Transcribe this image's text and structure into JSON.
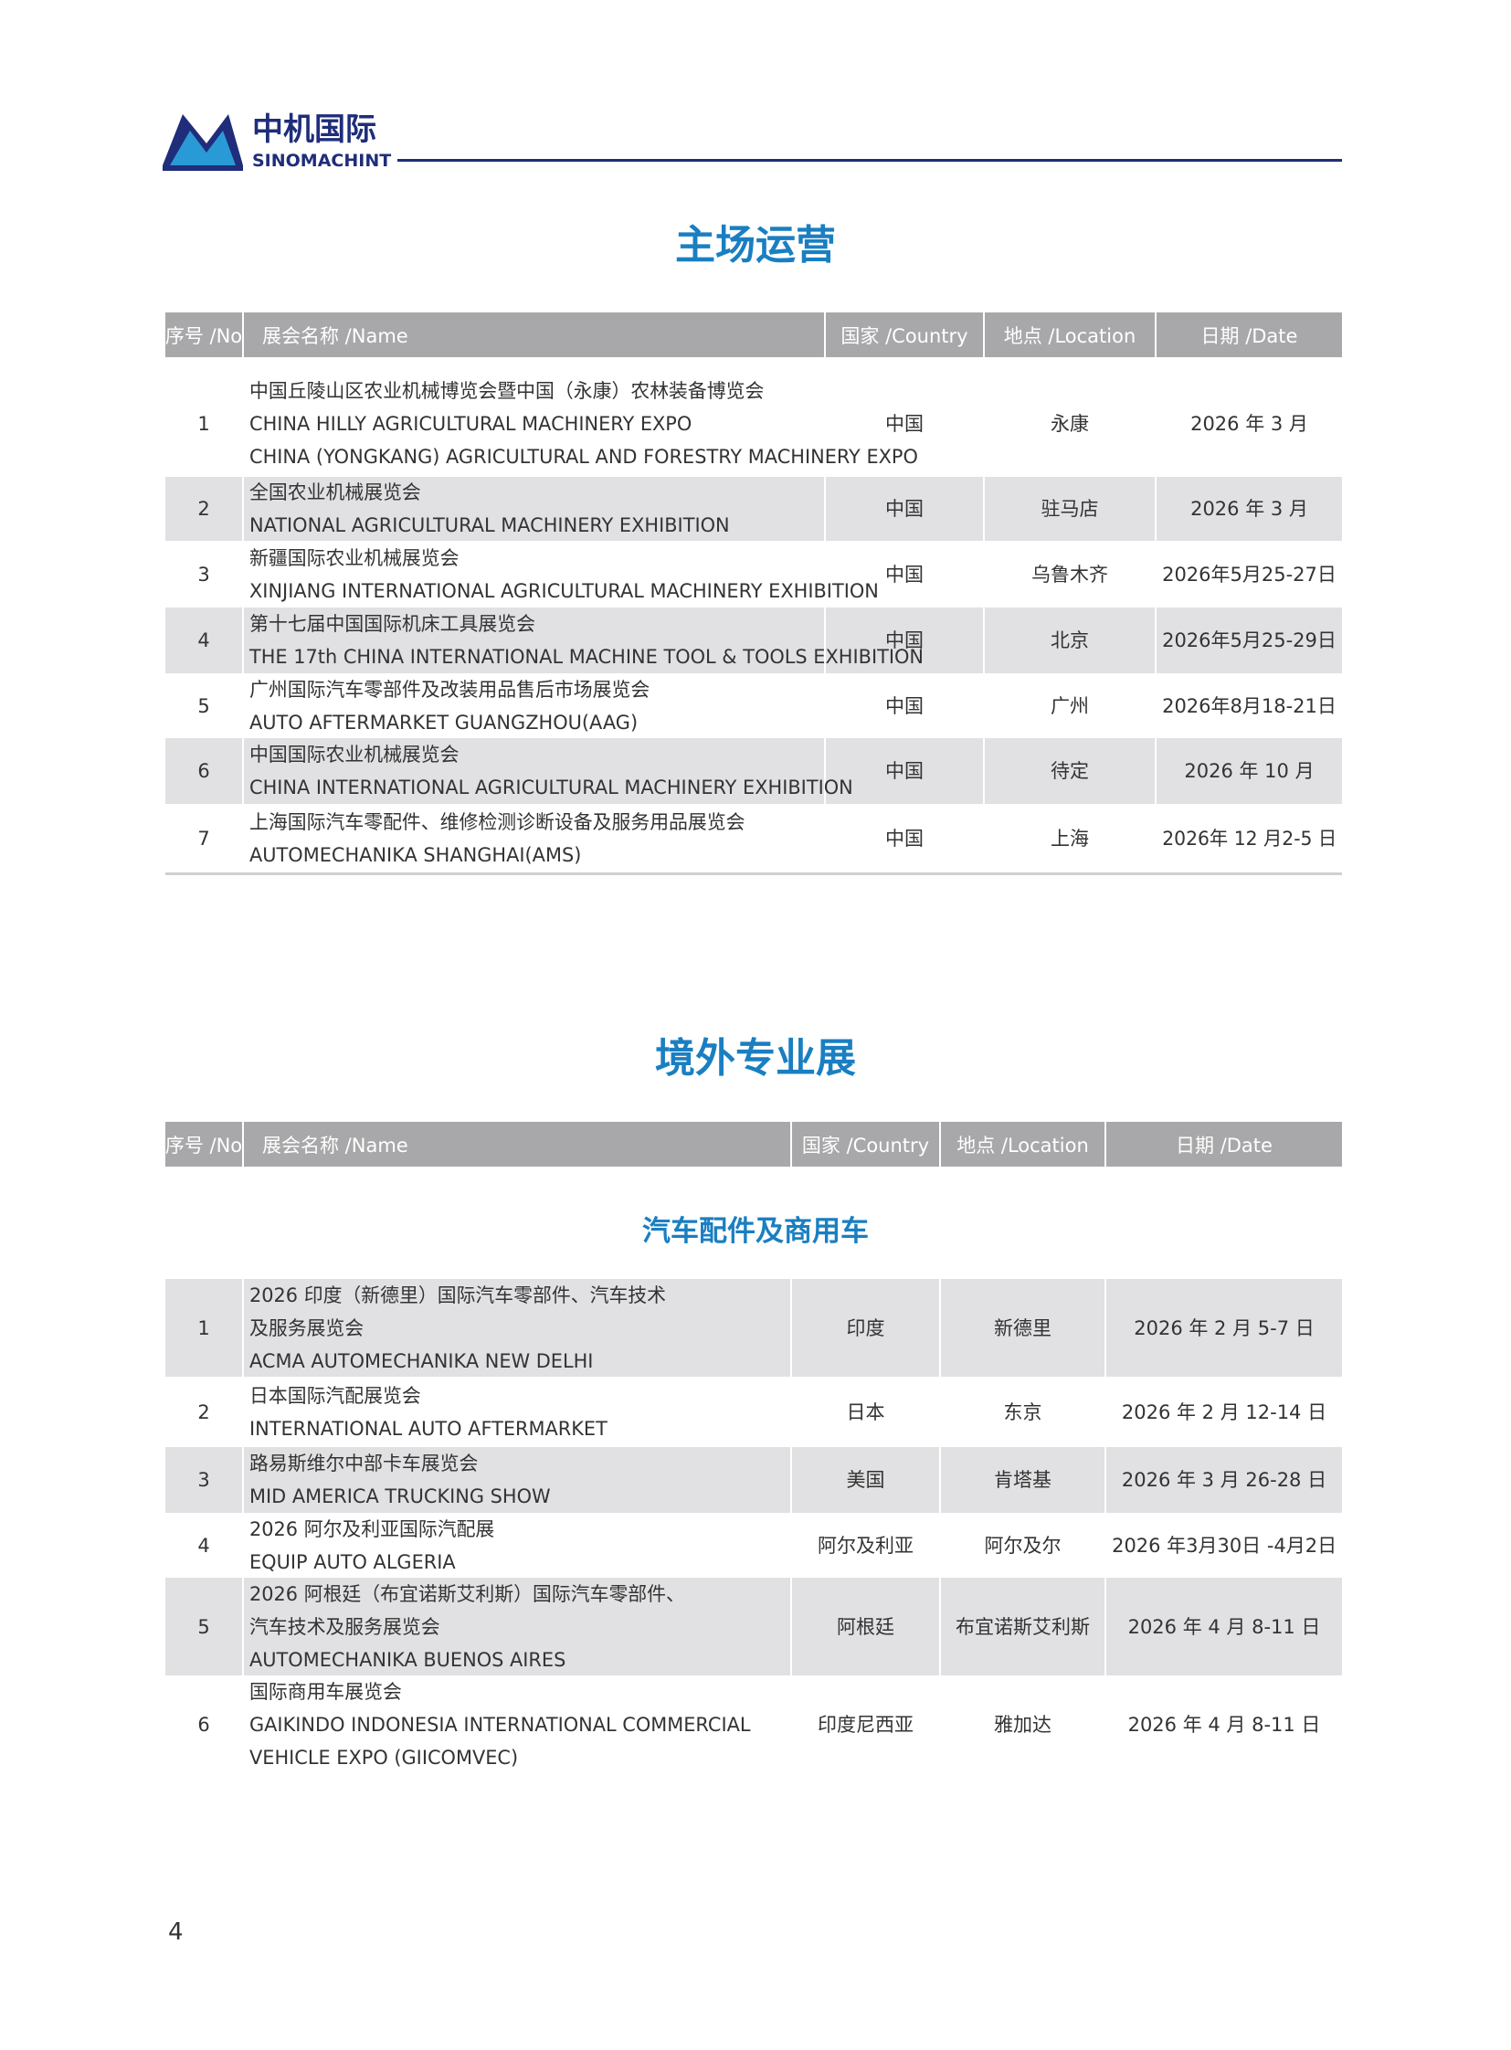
{
  "header": {
    "logo_cn": "中机国际",
    "logo_en": "SINOMACHINT"
  },
  "sections": [
    {
      "title": "主场运营",
      "table": {
        "columns": [
          "序号 /No",
          "展会名称 /Name",
          "国家 /Country",
          "地点 /Location",
          "日期 /Date"
        ],
        "rows": [
          {
            "no": "1",
            "name": [
              "中国丘陵山区农业机械博览会暨中国（永康）农林装备博览会",
              "CHINA HILLY AGRICULTURAL MACHINERY EXPO",
              "CHINA (YONGKANG) AGRICULTURAL AND FORESTRY MACHINERY EXPO"
            ],
            "country": "中国",
            "location": "永康",
            "date": "2026 年 3 月"
          },
          {
            "no": "2",
            "name": [
              "全国农业机械展览会",
              "NATIONAL AGRICULTURAL MACHINERY EXHIBITION"
            ],
            "country": "中国",
            "location": "驻马店",
            "date": "2026 年 3 月"
          },
          {
            "no": "3",
            "name": [
              "新疆国际农业机械展览会",
              "XINJIANG INTERNATIONAL AGRICULTURAL MACHINERY EXHIBITION"
            ],
            "country": "中国",
            "location": "乌鲁木齐",
            "date": "2026年5月25-27日"
          },
          {
            "no": "4",
            "name": [
              "第十七届中国国际机床工具展览会",
              "THE 17th CHINA INTERNATIONAL MACHINE TOOL & TOOLS EXHIBITION"
            ],
            "country": "中国",
            "location": "北京",
            "date": "2026年5月25-29日"
          },
          {
            "no": "5",
            "name": [
              "广州国际汽车零部件及改装用品售后市场展览会",
              "AUTO AFTERMARKET GUANGZHOU(AAG)"
            ],
            "country": "中国",
            "location": "广州",
            "date": "2026年8月18-21日"
          },
          {
            "no": "6",
            "name": [
              "中国国际农业机械展览会",
              "CHINA INTERNATIONAL AGRICULTURAL MACHINERY EXHIBITION"
            ],
            "country": "中国",
            "location": "待定",
            "date": "2026 年 10 月"
          },
          {
            "no": "7",
            "name": [
              "上海国际汽车零配件、维修检测诊断设备及服务用品展览会",
              "AUTOMECHANIKA SHANGHAI(AMS)"
            ],
            "country": "中国",
            "location": "上海",
            "date": "2026年 12 月2-5 日"
          }
        ]
      }
    },
    {
      "title": "境外专业展",
      "subtitle": "汽车配件及商用车",
      "table": {
        "columns": [
          "序号 /No",
          "展会名称 /Name",
          "国家 /Country",
          "地点 /Location",
          "日期 /Date"
        ],
        "rows": [
          {
            "no": "1",
            "name": [
              "2026 印度（新德里）国际汽车零部件、汽车技术",
              "及服务展览会",
              "ACMA AUTOMECHANIKA NEW DELHI"
            ],
            "country": "印度",
            "location": "新德里",
            "date": "2026 年 2 月 5-7 日"
          },
          {
            "no": "2",
            "name": [
              "日本国际汽配展览会",
              "INTERNATIONAL AUTO AFTERMARKET"
            ],
            "country": "日本",
            "location": "东京",
            "date": "2026 年 2 月 12-14 日"
          },
          {
            "no": "3",
            "name": [
              "路易斯维尔中部卡车展览会",
              "MID AMERICA TRUCKING SHOW"
            ],
            "country": "美国",
            "location": "肯塔基",
            "date": "2026 年 3 月 26-28 日"
          },
          {
            "no": "4",
            "name": [
              "2026 阿尔及利亚国际汽配展",
              "EQUIP AUTO ALGERIA"
            ],
            "country": "阿尔及利亚",
            "location": "阿尔及尔",
            "date": "2026 年3月30日 -4月2日"
          },
          {
            "no": "5",
            "name": [
              "2026 阿根廷（布宜诺斯艾利斯）国际汽车零部件、",
              "汽车技术及服务展览会",
              "AUTOMECHANIKA BUENOS AIRES"
            ],
            "country": "阿根廷",
            "location": "布宜诺斯艾利斯",
            "date": "2026 年 4 月 8-11 日"
          },
          {
            "no": "6",
            "name": [
              "国际商用车展览会",
              "GAIKINDO INDONESIA INTERNATIONAL COMMERCIAL",
              "VEHICLE EXPO (GIICOMVEC)"
            ],
            "country": "印度尼西亚",
            "location": "雅加达",
            "date": "2026 年 4 月 8-11 日"
          }
        ]
      }
    }
  ],
  "page_number": "4"
}
